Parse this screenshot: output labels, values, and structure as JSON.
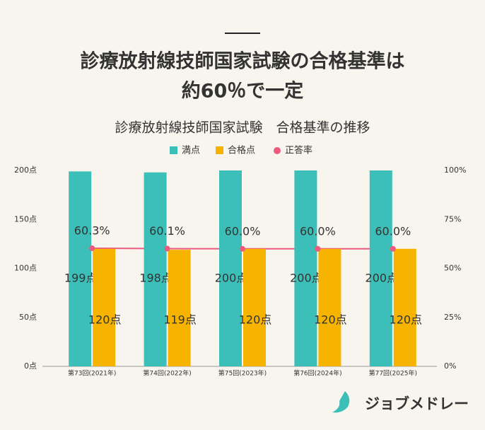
{
  "title_lines": [
    "診療放射線技師国家試験の合格基準は",
    "約60％で一定"
  ],
  "logo": "ジョブメドレー",
  "chart_data": {
    "type": "bar_line",
    "title": "診療放射線技師国家試験　合格基準の推移",
    "categories": [
      "第73回(2021年)",
      "第74回(2022年)",
      "第75回(2023年)",
      "第76回(2024年)",
      "第77回(2025年)"
    ],
    "series": [
      {
        "name": "満点",
        "color": "#3bbfb8",
        "values": [
          199,
          198,
          200,
          200,
          200
        ],
        "value_labels": [
          "199点",
          "198点",
          "200点",
          "200点",
          "200点"
        ]
      },
      {
        "name": "合格点",
        "color": "#f6b300",
        "values": [
          120,
          119,
          120,
          120,
          120
        ],
        "value_labels": [
          "120点",
          "119点",
          "120点",
          "120点",
          "120点"
        ]
      },
      {
        "name": "正答率",
        "color": "#ec5a7e",
        "type": "line",
        "axis": "y2",
        "values": [
          60.3,
          60.1,
          60.0,
          60.0,
          60.0
        ],
        "value_labels": [
          "60.3%",
          "60.1%",
          "60.0%",
          "60.0%",
          "60.0%"
        ]
      }
    ],
    "ylim": [
      0,
      200
    ],
    "yticks": [
      {
        "value": 0,
        "label": "0点"
      },
      {
        "value": 50,
        "label": "50点"
      },
      {
        "value": 100,
        "label": "100点"
      },
      {
        "value": 150,
        "label": "150点"
      },
      {
        "value": 200,
        "label": "200点"
      }
    ],
    "y2lim": [
      0,
      100
    ],
    "y2ticks": [
      {
        "value": 0,
        "label": "0%"
      },
      {
        "value": 25,
        "label": "25%"
      },
      {
        "value": 50,
        "label": "50%"
      },
      {
        "value": 75,
        "label": "75%"
      },
      {
        "value": 100,
        "label": "100%"
      }
    ],
    "grid": false,
    "legend": "top"
  }
}
